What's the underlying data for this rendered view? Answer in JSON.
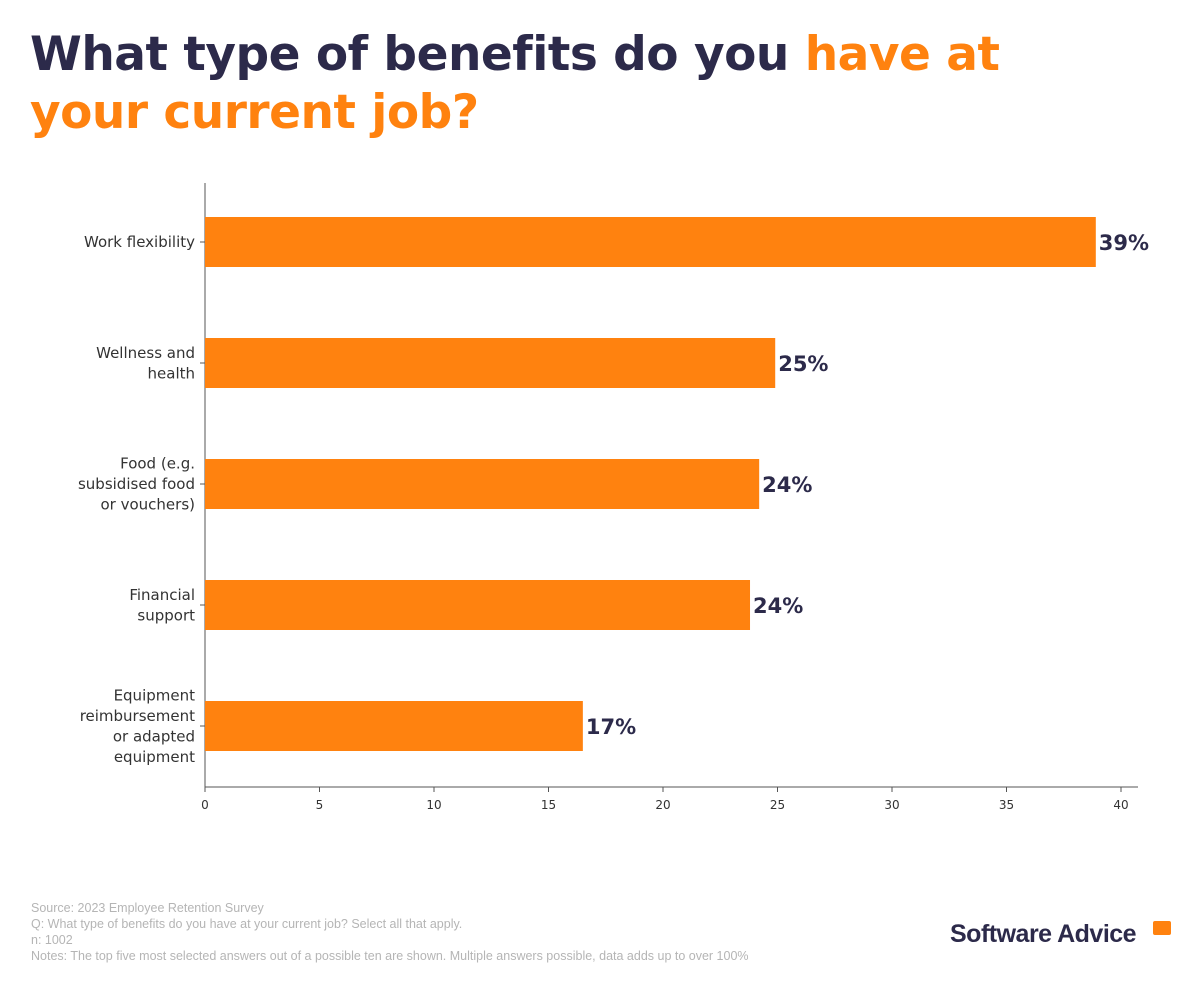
{
  "title": {
    "part1": "What type of benefits do you ",
    "part2": "have at your current job?"
  },
  "chart_data": {
    "type": "bar",
    "orientation": "horizontal",
    "categories": [
      [
        "Work flexibility"
      ],
      [
        "Wellness and",
        "health"
      ],
      [
        "Food (e.g.",
        "subsidised food",
        "or vouchers)"
      ],
      [
        "Financial",
        "support"
      ],
      [
        "Equipment",
        "reimbursement",
        "or adapted",
        "equipment"
      ]
    ],
    "values": [
      38.9,
      24.9,
      24.2,
      23.8,
      16.5
    ],
    "data_labels": [
      "39%",
      "25%",
      "24%",
      "24%",
      "17%"
    ],
    "xlim": [
      0,
      41.5
    ],
    "xticks": [
      "0",
      "5",
      "10",
      "15",
      "20",
      "25",
      "30",
      "35",
      "40"
    ],
    "grid": false,
    "colors": {
      "bar": "#ff820f",
      "label": "#2c2a4a",
      "axis": "#555555"
    }
  },
  "footer": {
    "source": "Source: 2023 Employee Retention Survey",
    "question": "Q: What type of benefits do you have at your current job? Select all that apply.",
    "n": "n: 1002",
    "notes": "Notes: The top five most selected answers out of a possible ten are shown. Multiple answers possible, data adds up to over 100%"
  },
  "logo": {
    "text": "Software Advice"
  }
}
